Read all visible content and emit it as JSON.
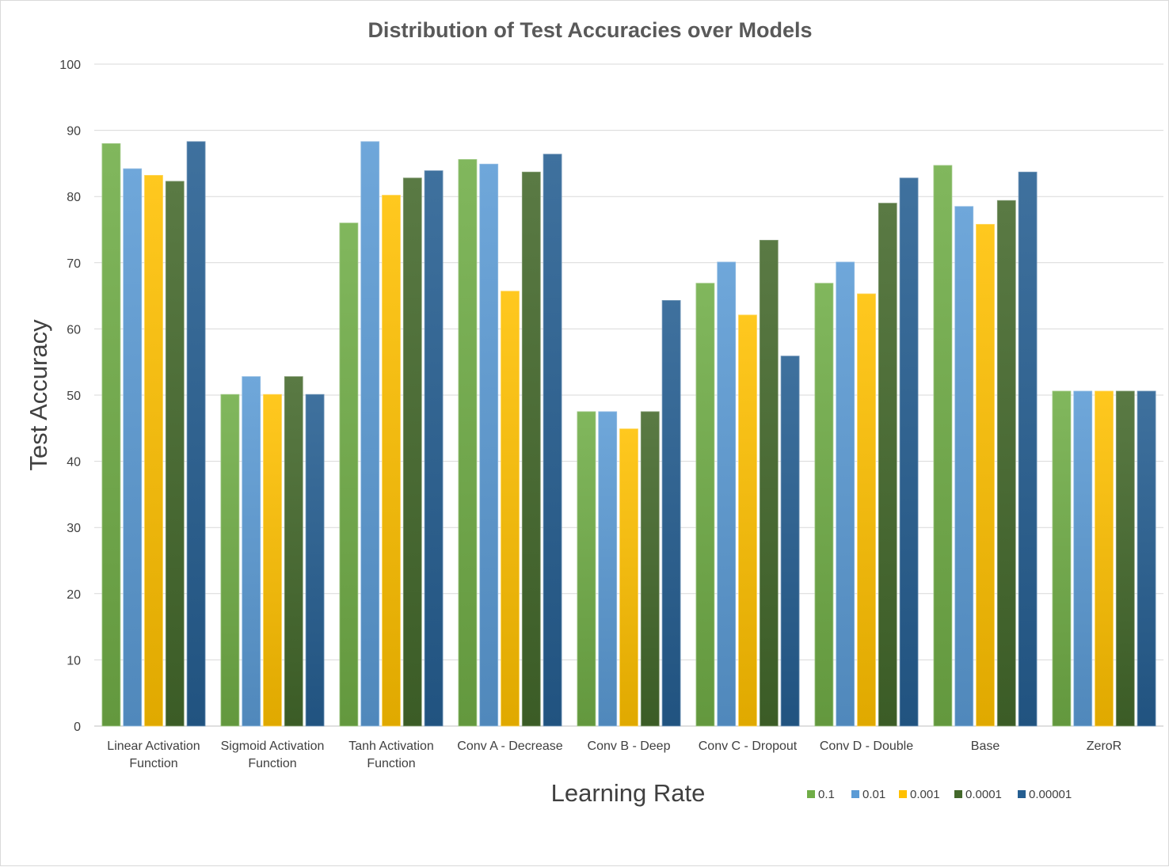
{
  "chart_data": {
    "type": "bar",
    "title": "Distribution of Test Accuracies over Models",
    "xlabel": "Learning Rate",
    "ylabel": "Test Accuracy",
    "ylim": [
      0,
      100
    ],
    "ytick_step": 10,
    "grid": true,
    "legend_position": "bottom-right",
    "categories": [
      [
        "Linear Activation",
        "Function"
      ],
      [
        "Sigmoid Activation",
        "Function"
      ],
      [
        "Tanh Activation",
        "Function"
      ],
      [
        "Conv A - Decrease"
      ],
      [
        "Conv B - Deep"
      ],
      [
        "Conv C - Dropout"
      ],
      [
        "Conv D - Double"
      ],
      [
        "Base"
      ],
      [
        "ZeroR"
      ]
    ],
    "series": [
      {
        "name": "0.1",
        "color": "#70ad47",
        "values": [
          88.0,
          50.1,
          76.0,
          85.6,
          47.5,
          66.9,
          66.9,
          84.7,
          50.6
        ]
      },
      {
        "name": "0.01",
        "color": "#5b9bd5",
        "values": [
          84.2,
          52.8,
          88.3,
          84.9,
          47.5,
          70.1,
          70.1,
          78.5,
          50.6
        ]
      },
      {
        "name": "0.001",
        "color": "#ffc000",
        "values": [
          83.2,
          50.1,
          80.2,
          65.7,
          44.9,
          62.1,
          65.3,
          75.8,
          50.6
        ]
      },
      {
        "name": "0.0001",
        "color": "#43682b",
        "values": [
          82.3,
          52.8,
          82.8,
          83.7,
          47.5,
          73.4,
          79.0,
          79.4,
          50.6
        ]
      },
      {
        "name": "0.00001",
        "color": "#255e91",
        "values": [
          88.3,
          50.1,
          83.9,
          86.4,
          64.3,
          55.9,
          82.8,
          83.7,
          50.6
        ]
      }
    ]
  }
}
